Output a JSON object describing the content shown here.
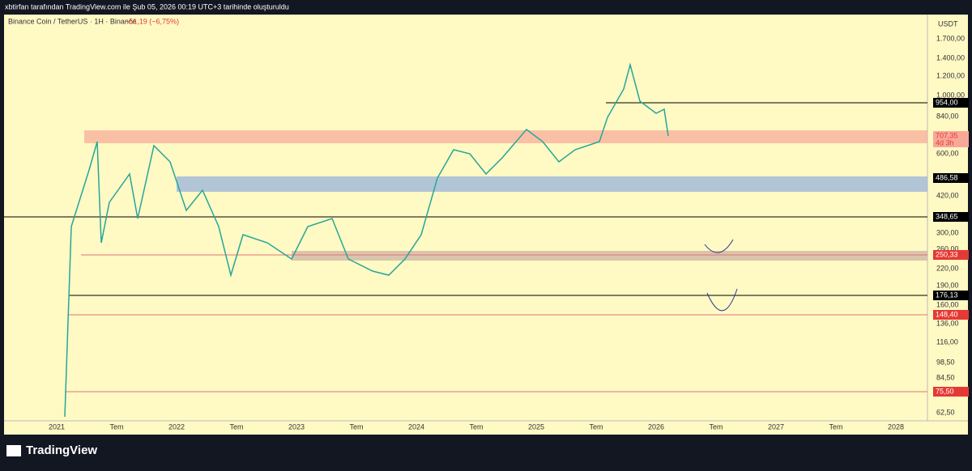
{
  "header": {
    "caption": "xbtirfan tarafından TradingView.com ile Şub 05, 2026 00:19 UTC+3 tarihinde oluşturuldu"
  },
  "legend": {
    "symbol": "Binance Coin / TetherUS · 1H · Binance",
    "change": "−51,19 (−6,75%)"
  },
  "price_axis": {
    "unit": "USDT",
    "labels": [
      "1.700,00",
      "1.400,00",
      "1.200,00",
      "1.000,00",
      "840,00",
      "600,00",
      "420,00",
      "300,00",
      "260,00",
      "220,00",
      "190,00",
      "160,00",
      "136,00",
      "116,00",
      "98,50",
      "84,50",
      "62,50"
    ]
  },
  "price_tags": [
    {
      "label": "954,00",
      "style": "black"
    },
    {
      "label": "707,35",
      "style": "red",
      "sub": "4d 3h"
    },
    {
      "label": "486,58",
      "style": "black"
    },
    {
      "label": "348,65",
      "style": "black"
    },
    {
      "label": "250,33",
      "style": "red"
    },
    {
      "label": "176,13",
      "style": "black"
    },
    {
      "label": "148,40",
      "style": "red"
    },
    {
      "label": "75,50",
      "style": "red"
    }
  ],
  "time_axis": [
    "2021",
    "Tem",
    "2022",
    "Tem",
    "2023",
    "Tem",
    "2024",
    "Tem",
    "2025",
    "Tem",
    "2026",
    "Tem",
    "2027",
    "Tem",
    "2028"
  ],
  "footer": {
    "brand": "TradingView"
  }
}
